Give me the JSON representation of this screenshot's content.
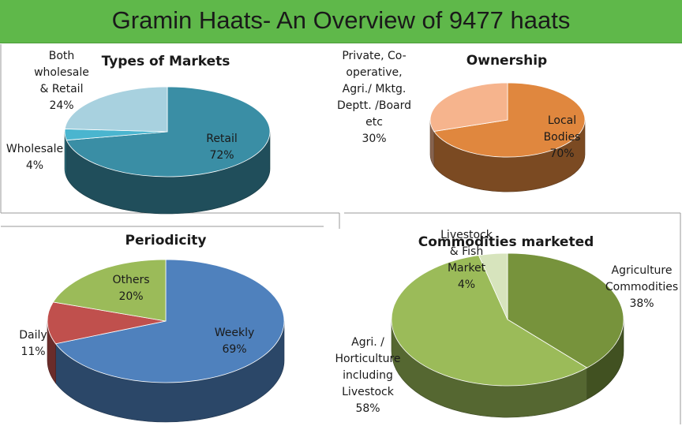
{
  "title": "Gramin Haats- An Overview of 9477 haats",
  "colors": {
    "header_bg": "#5fb84a"
  },
  "chart_data": [
    {
      "type": "pie",
      "title": "Types of Markets",
      "slices": [
        {
          "label": "Retail 72%",
          "lines": [
            "Retail",
            "72%"
          ],
          "value": 72,
          "color": "#3a8ea5"
        },
        {
          "label": "Wholesale 4%",
          "lines": [
            "Wholesale",
            "4%"
          ],
          "value": 4,
          "color": "#4ab5cf"
        },
        {
          "label": "Both wholesale & Retail 24%",
          "lines": [
            "Both",
            "wholesale",
            "& Retail",
            "24%"
          ],
          "value": 24,
          "color": "#a8d1df"
        }
      ]
    },
    {
      "type": "pie",
      "title": "Ownership",
      "slices": [
        {
          "label": "Local Bodies 70%",
          "lines": [
            "Local",
            "Bodies",
            "70%"
          ],
          "value": 70,
          "color": "#e0873e"
        },
        {
          "label": "Private, Co-operative, Agri./ Mktg. Deptt. /Board etc 30%",
          "lines": [
            "Private, Co-",
            "operative,",
            "Agri./ Mktg.",
            "Deptt. /Board",
            "etc",
            "30%"
          ],
          "value": 30,
          "color": "#f6b48d"
        }
      ]
    },
    {
      "type": "pie",
      "title": "Periodicity",
      "slices": [
        {
          "label": "Weekly 69%",
          "lines": [
            "Weekly",
            "69%"
          ],
          "value": 69,
          "color": "#4f81bd"
        },
        {
          "label": "Daily 11%",
          "lines": [
            "Daily",
            "11%"
          ],
          "value": 11,
          "color": "#c0504d"
        },
        {
          "label": "Others 20%",
          "lines": [
            "Others",
            "20%"
          ],
          "value": 20,
          "color": "#9bbb59"
        }
      ]
    },
    {
      "type": "pie",
      "title": "Commodities marketed",
      "slices": [
        {
          "label": "Agriculture Commodities 38%",
          "lines": [
            "Agriculture",
            "Commodities",
            "38%"
          ],
          "value": 38,
          "color": "#77933c"
        },
        {
          "label": "Agri. / Horticulture including Livestock 58%",
          "lines": [
            "Agri. /",
            "Horticulture",
            "including",
            "Livestock",
            "58%"
          ],
          "value": 58,
          "color": "#9bbb59"
        },
        {
          "label": "Livestock & Fish Market 4%",
          "lines": [
            "Livestock",
            "& Fish",
            "Market",
            "4%"
          ],
          "value": 4,
          "color": "#d7e4bd"
        }
      ]
    }
  ]
}
